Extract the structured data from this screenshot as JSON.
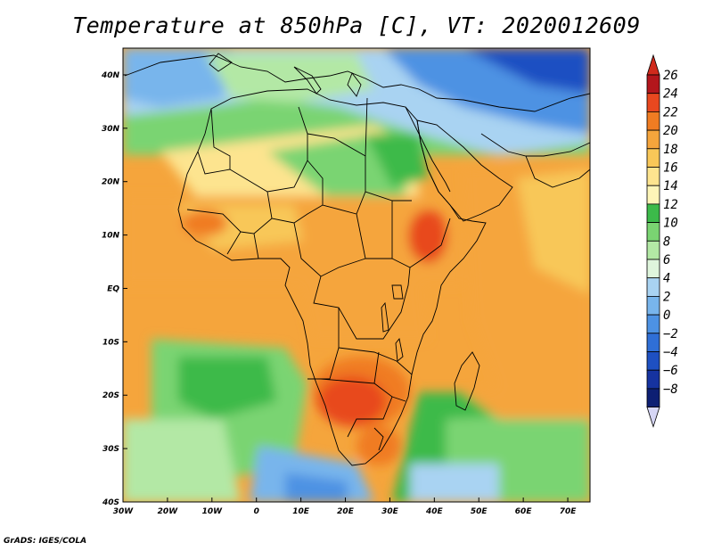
{
  "title": "Temperature at 850hPa [C], VT: 2020012609",
  "credit": "GrADS: IGES/COLA",
  "map": {
    "lon_range": [
      -30,
      75
    ],
    "lat_range": [
      -40,
      45
    ],
    "x_ticks": [
      {
        "lon": -30,
        "label": "30W"
      },
      {
        "lon": -20,
        "label": "20W"
      },
      {
        "lon": -10,
        "label": "10W"
      },
      {
        "lon": 0,
        "label": "0"
      },
      {
        "lon": 10,
        "label": "10E"
      },
      {
        "lon": 20,
        "label": "20E"
      },
      {
        "lon": 30,
        "label": "30E"
      },
      {
        "lon": 40,
        "label": "40E"
      },
      {
        "lon": 50,
        "label": "50E"
      },
      {
        "lon": 60,
        "label": "60E"
      },
      {
        "lon": 70,
        "label": "70E"
      }
    ],
    "y_ticks": [
      {
        "lat": 40,
        "label": "40N"
      },
      {
        "lat": 30,
        "label": "30N"
      },
      {
        "lat": 20,
        "label": "20N"
      },
      {
        "lat": 10,
        "label": "10N"
      },
      {
        "lat": 0,
        "label": "EQ"
      },
      {
        "lat": -10,
        "label": "10S"
      },
      {
        "lat": -20,
        "label": "20S"
      },
      {
        "lat": -30,
        "label": "30S"
      },
      {
        "lat": -40,
        "label": "40S"
      }
    ]
  },
  "colorbar": {
    "unit": "C",
    "levels": [
      {
        "value": 26,
        "label": "26",
        "color": "#b3161c"
      },
      {
        "value": 24,
        "label": "24",
        "color": "#e8481f"
      },
      {
        "value": 22,
        "label": "22",
        "color": "#f07c22"
      },
      {
        "value": 20,
        "label": "20",
        "color": "#f5a53c"
      },
      {
        "value": 18,
        "label": "18",
        "color": "#f8c758"
      },
      {
        "value": 16,
        "label": "16",
        "color": "#fde48f"
      },
      {
        "value": 14,
        "label": "14",
        "color": "#fdf5b8"
      },
      {
        "value": 12,
        "label": "12",
        "color": "#3cba4a"
      },
      {
        "value": 10,
        "label": "10",
        "color": "#7ad472"
      },
      {
        "value": 8,
        "label": "8",
        "color": "#b3e8a5"
      },
      {
        "value": 6,
        "label": "6",
        "color": "#dff5dc"
      },
      {
        "value": 4,
        "label": "4",
        "color": "#a9d3f2"
      },
      {
        "value": 2,
        "label": "2",
        "color": "#78b5ec"
      },
      {
        "value": 0,
        "label": "0",
        "color": "#4d92e3"
      },
      {
        "value": -2,
        "label": "−2",
        "color": "#2f6fd6"
      },
      {
        "value": -4,
        "label": "−4",
        "color": "#1e50c2"
      },
      {
        "value": -6,
        "label": "−6",
        "color": "#1633a0"
      },
      {
        "value": -8,
        "label": "−8",
        "color": "#0d1f73"
      }
    ],
    "top_color": "#d02a1c",
    "bottom_color": "#d6d6f5"
  }
}
